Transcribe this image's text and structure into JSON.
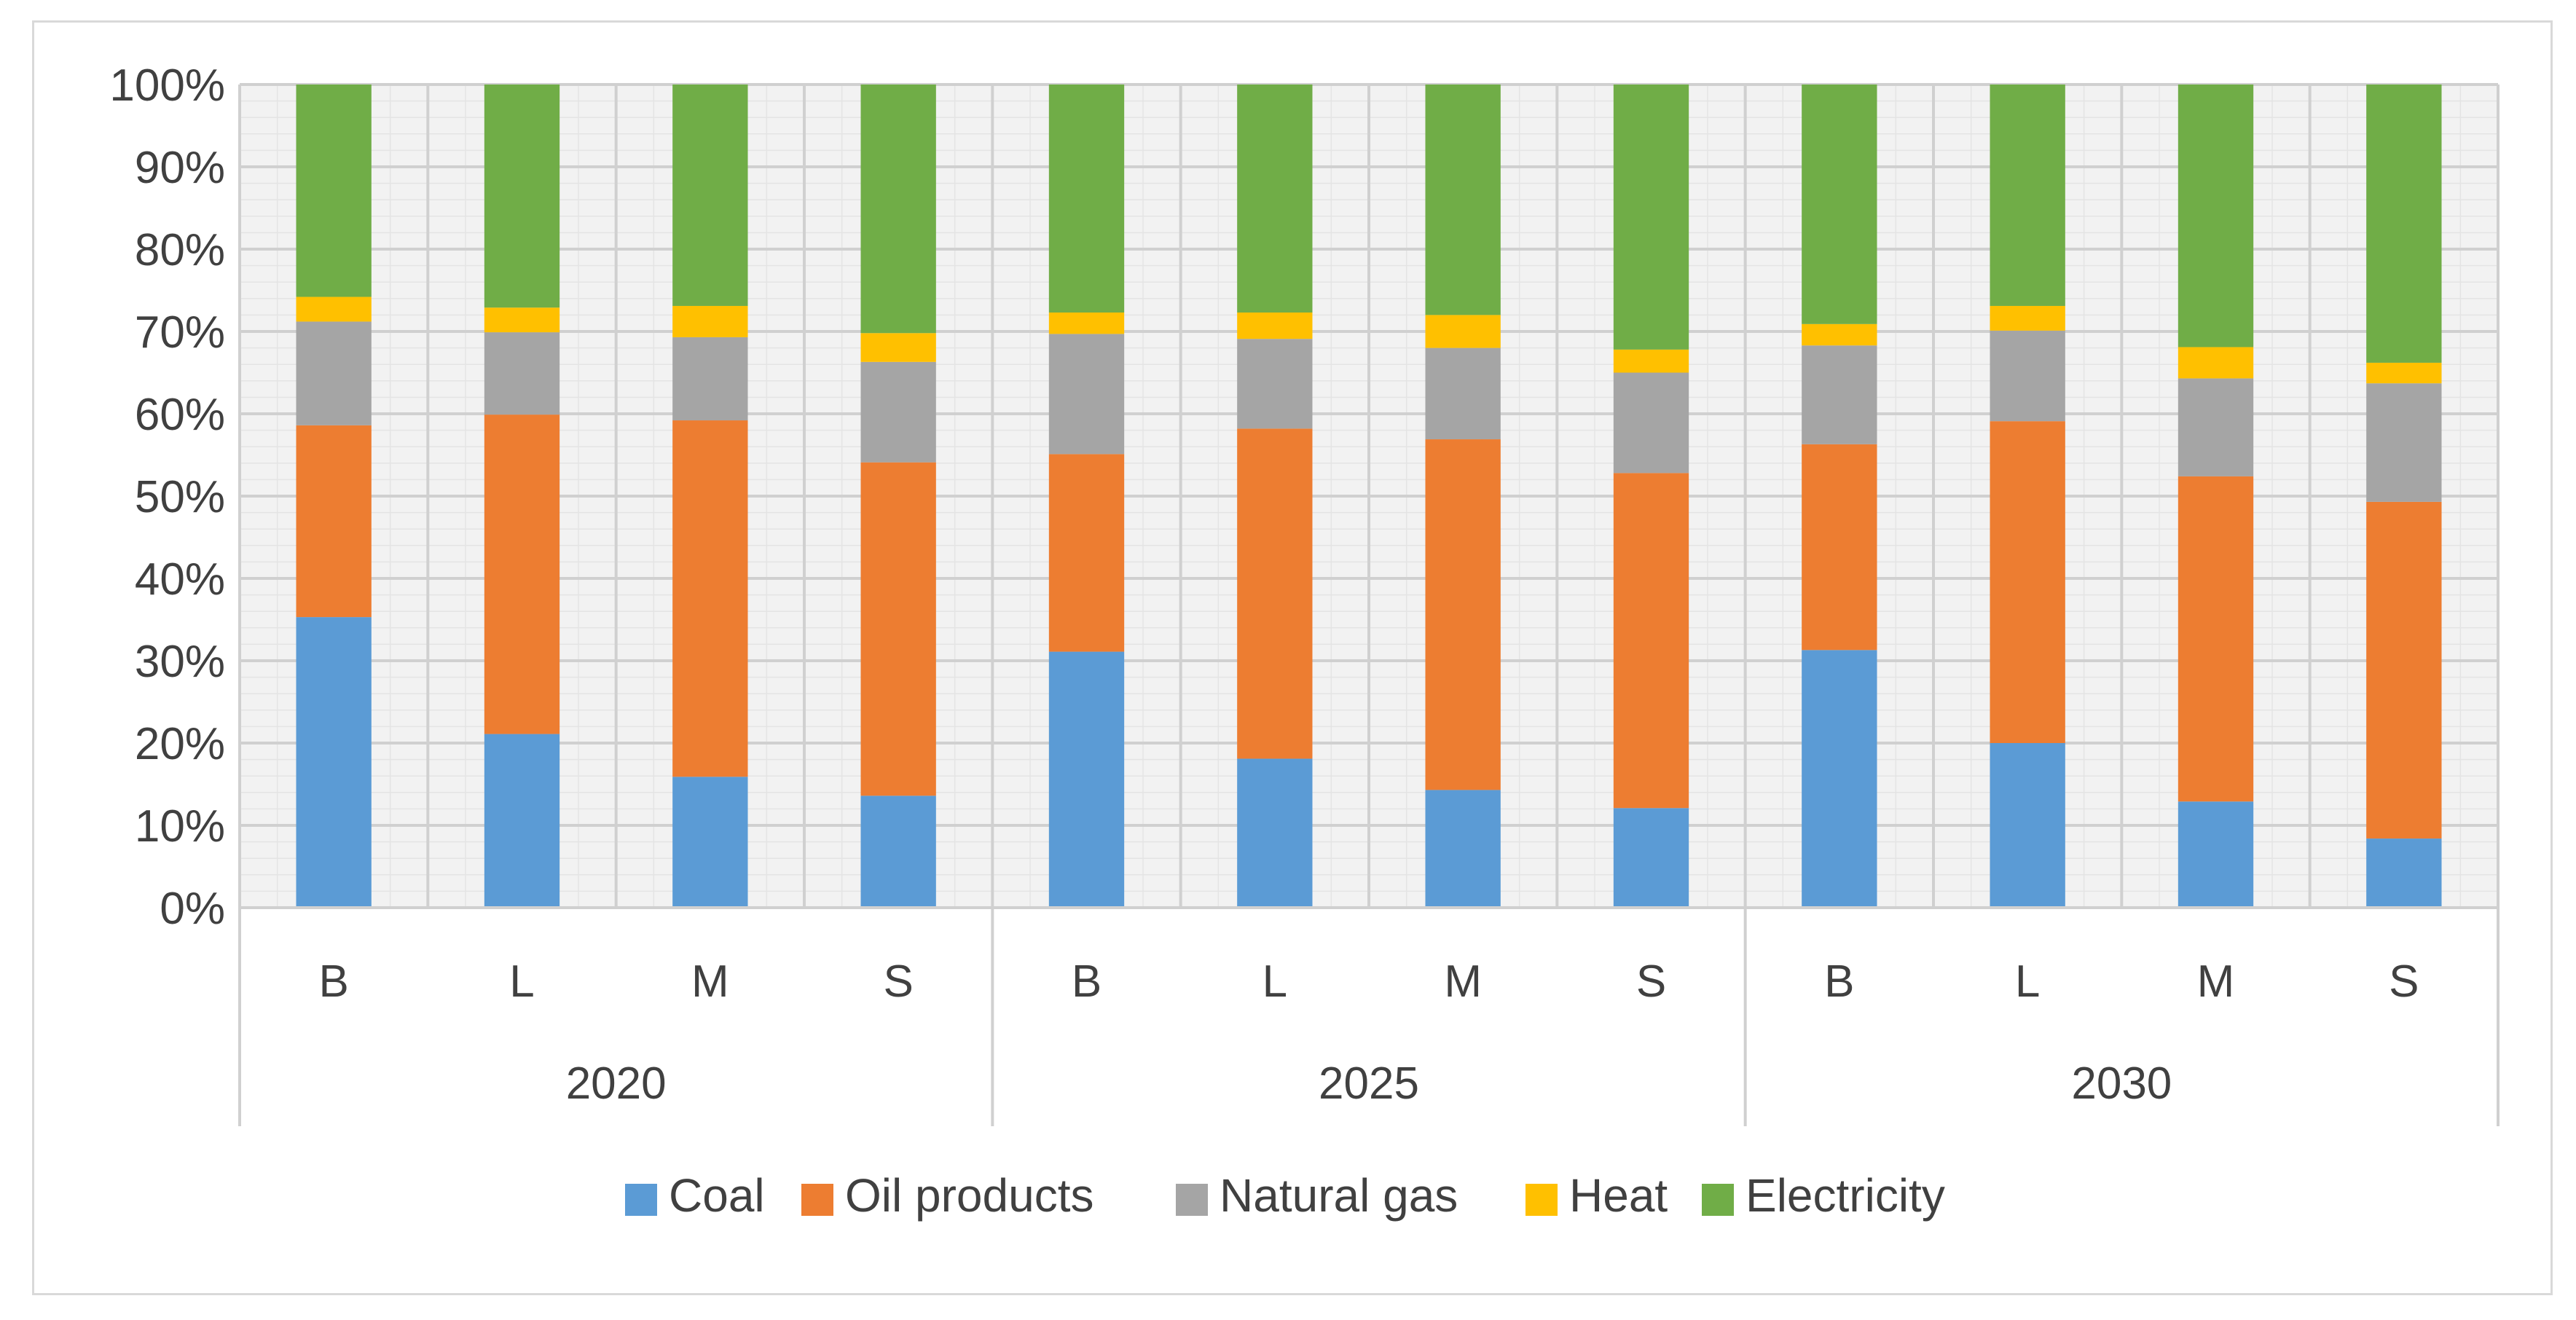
{
  "chart_data": {
    "type": "bar",
    "stacked": true,
    "percent_stacked": true,
    "title": "",
    "xlabel": "",
    "ylabel": "",
    "ylim": [
      0,
      100
    ],
    "y_ticks": [
      "0%",
      "10%",
      "20%",
      "30%",
      "40%",
      "50%",
      "60%",
      "70%",
      "80%",
      "90%",
      "100%"
    ],
    "grid": true,
    "legend_position": "bottom",
    "groups": [
      {
        "label": "2020",
        "categories": [
          "B",
          "L",
          "M",
          "S"
        ]
      },
      {
        "label": "2025",
        "categories": [
          "B",
          "L",
          "M",
          "S"
        ]
      },
      {
        "label": "2030",
        "categories": [
          "B",
          "L",
          "M",
          "S"
        ]
      }
    ],
    "categories": [
      "B",
      "L",
      "M",
      "S",
      "B",
      "L",
      "M",
      "S",
      "B",
      "L",
      "M",
      "S"
    ],
    "series": [
      {
        "name": "Coal",
        "color": "#5B9BD5",
        "values": [
          35.3,
          21.1,
          15.9,
          13.6,
          31.1,
          18.1,
          14.3,
          12.1,
          31.3,
          20.0,
          12.9,
          8.4
        ]
      },
      {
        "name": "Oil products",
        "color": "#ED7D31",
        "values": [
          23.3,
          38.8,
          43.3,
          40.5,
          24.0,
          40.1,
          42.6,
          40.7,
          25.0,
          39.1,
          39.5,
          40.9
        ]
      },
      {
        "name": "Natural gas",
        "color": "#A5A5A5",
        "values": [
          12.6,
          10.0,
          10.1,
          12.2,
          14.6,
          10.9,
          11.1,
          12.2,
          12.0,
          11.0,
          11.9,
          14.4
        ]
      },
      {
        "name": "Heat",
        "color": "#FFC000",
        "values": [
          3.0,
          3.0,
          3.8,
          3.5,
          2.6,
          3.2,
          4.0,
          2.8,
          2.6,
          3.0,
          3.8,
          2.5
        ]
      },
      {
        "name": "Electricity",
        "color": "#70AD47",
        "values": [
          25.8,
          27.1,
          26.9,
          30.2,
          27.7,
          27.7,
          28.0,
          32.2,
          29.1,
          26.9,
          31.9,
          33.8
        ]
      }
    ]
  }
}
